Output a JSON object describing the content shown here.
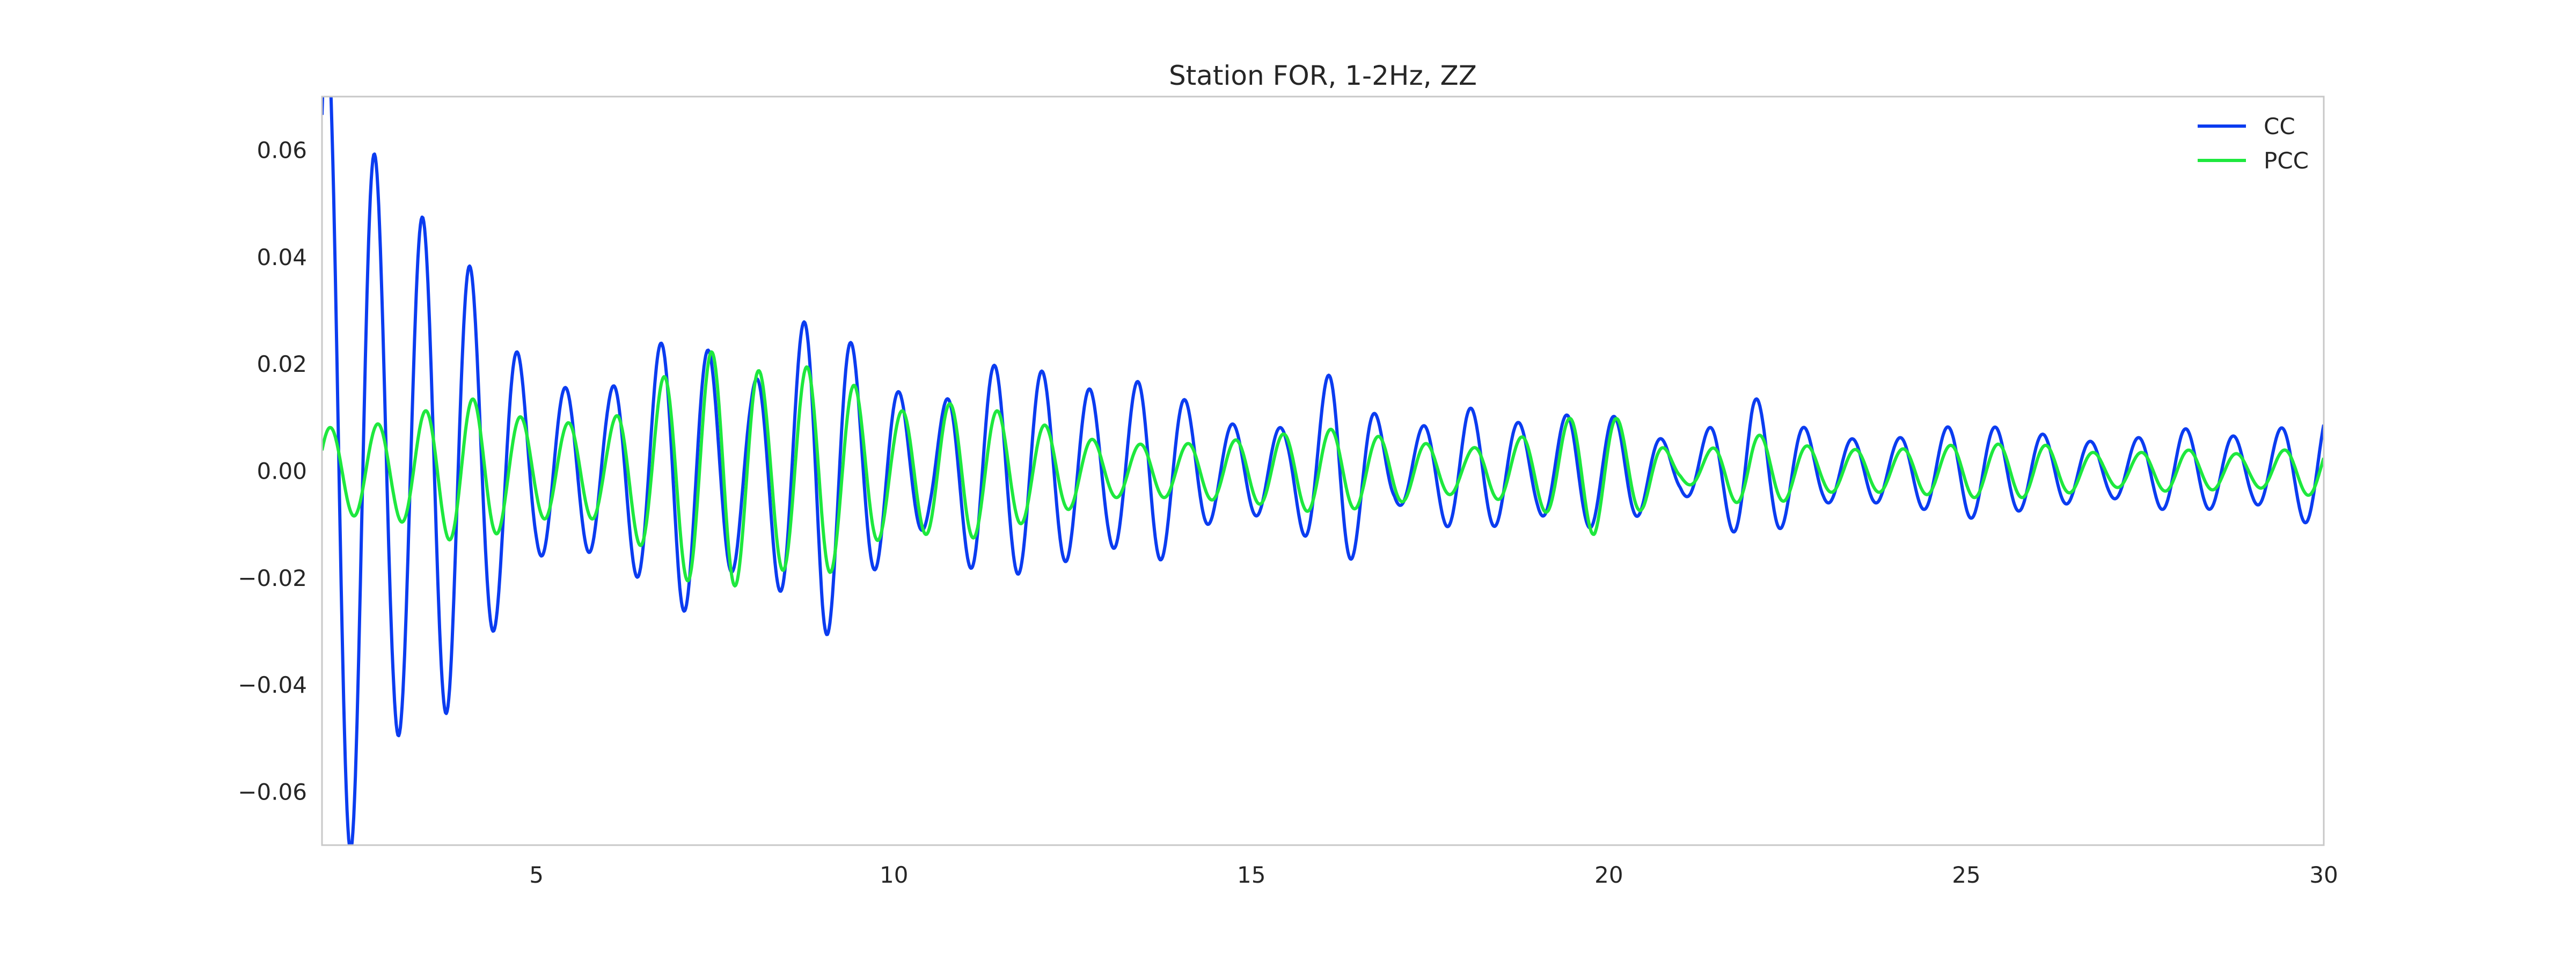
{
  "chart_data": {
    "type": "line",
    "title": "Station FOR, 1-2Hz, ZZ",
    "xlabel": "",
    "ylabel": "",
    "xlim": [
      2,
      30
    ],
    "ylim": [
      -0.07,
      0.07
    ],
    "xticks": [
      5,
      10,
      15,
      20,
      25,
      30
    ],
    "yticks": [
      0.06,
      0.04,
      0.02,
      0.0,
      -0.02,
      -0.04,
      -0.06
    ],
    "ytick_labels": [
      "0.06",
      "0.04",
      "0.02",
      "0.00",
      "−0.02",
      "−0.04",
      "−0.06"
    ],
    "grid": false,
    "legend_position": "upper right",
    "series": [
      {
        "name": "CC",
        "color": "#0b3cf0",
        "envelope": [
          [
            2.0,
            0.085
          ],
          [
            3.0,
            0.05
          ],
          [
            3.8,
            0.045
          ],
          [
            4.4,
            0.03
          ],
          [
            5.0,
            0.016
          ],
          [
            6.0,
            0.015
          ],
          [
            7.0,
            0.027
          ],
          [
            8.0,
            0.016
          ],
          [
            9.0,
            0.032
          ],
          [
            9.6,
            0.02
          ],
          [
            10.5,
            0.01
          ],
          [
            11.2,
            0.02
          ],
          [
            12.0,
            0.019
          ],
          [
            13.0,
            0.014
          ],
          [
            13.6,
            0.018
          ],
          [
            14.5,
            0.009
          ],
          [
            15.5,
            0.008
          ],
          [
            16.2,
            0.02
          ],
          [
            17.0,
            0.006
          ],
          [
            18.0,
            0.012
          ],
          [
            19.0,
            0.008
          ],
          [
            19.5,
            0.011
          ],
          [
            20.2,
            0.01
          ],
          [
            21.0,
            0.004
          ],
          [
            22.0,
            0.014
          ],
          [
            23.0,
            0.006
          ],
          [
            24.0,
            0.006
          ],
          [
            25.0,
            0.009
          ],
          [
            26.0,
            0.007
          ],
          [
            27.0,
            0.005
          ],
          [
            28.0,
            0.008
          ],
          [
            29.0,
            0.006
          ],
          [
            30.0,
            0.011
          ]
        ],
        "freq": 1.5,
        "phase": 0.9
      },
      {
        "name": "PCC",
        "color": "#1ee83e",
        "envelope": [
          [
            2.0,
            0.008
          ],
          [
            3.0,
            0.009
          ],
          [
            4.0,
            0.014
          ],
          [
            5.0,
            0.009
          ],
          [
            6.0,
            0.009
          ],
          [
            7.0,
            0.02
          ],
          [
            7.6,
            0.023
          ],
          [
            8.2,
            0.018
          ],
          [
            9.0,
            0.02
          ],
          [
            10.0,
            0.011
          ],
          [
            11.0,
            0.013
          ],
          [
            12.0,
            0.009
          ],
          [
            13.0,
            0.005
          ],
          [
            14.0,
            0.005
          ],
          [
            15.0,
            0.006
          ],
          [
            16.0,
            0.008
          ],
          [
            17.0,
            0.006
          ],
          [
            18.0,
            0.004
          ],
          [
            19.0,
            0.007
          ],
          [
            19.8,
            0.012
          ],
          [
            20.5,
            0.007
          ],
          [
            21.0,
            0.002
          ],
          [
            22.0,
            0.007
          ],
          [
            23.0,
            0.004
          ],
          [
            24.0,
            0.004
          ],
          [
            25.0,
            0.005
          ],
          [
            26.0,
            0.005
          ],
          [
            27.0,
            0.003
          ],
          [
            28.0,
            0.004
          ],
          [
            29.0,
            0.003
          ],
          [
            30.0,
            0.005
          ]
        ],
        "freq": 1.5,
        "phase": 0.5
      }
    ]
  }
}
